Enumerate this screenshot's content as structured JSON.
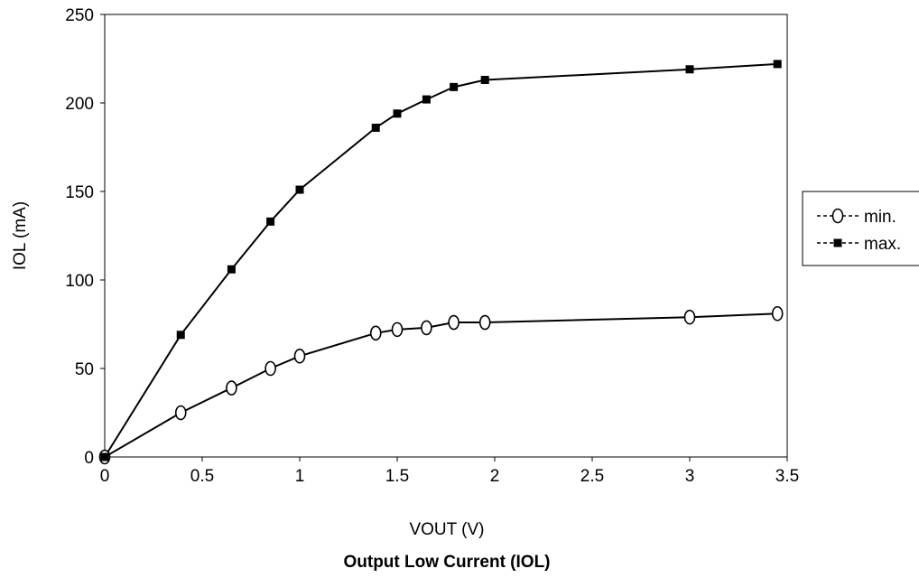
{
  "chart_data": {
    "type": "line",
    "title": "Output Low Current (IOL)",
    "xlabel": "VOUT (V)",
    "ylabel": "IOL (mA)",
    "xlim": [
      0,
      3.5
    ],
    "ylim": [
      0,
      250
    ],
    "x_ticks": [
      "0",
      "0.5",
      "1",
      "1.5",
      "2",
      "2.5",
      "3",
      "3.5"
    ],
    "y_ticks": [
      "0",
      "50",
      "100",
      "150",
      "200",
      "250"
    ],
    "grid": false,
    "legend_position": "right",
    "series": [
      {
        "name": "min.",
        "marker": "open-circle",
        "color": "#000000",
        "points": [
          {
            "x": 0,
            "y": 0
          },
          {
            "x": 0.39,
            "y": 25
          },
          {
            "x": 0.65,
            "y": 39
          },
          {
            "x": 0.85,
            "y": 50
          },
          {
            "x": 1.0,
            "y": 57
          },
          {
            "x": 1.39,
            "y": 70
          },
          {
            "x": 1.5,
            "y": 72
          },
          {
            "x": 1.65,
            "y": 73
          },
          {
            "x": 1.79,
            "y": 76
          },
          {
            "x": 1.95,
            "y": 76
          },
          {
            "x": 3.0,
            "y": 79
          },
          {
            "x": 3.45,
            "y": 81
          }
        ]
      },
      {
        "name": "max.",
        "marker": "filled-square",
        "color": "#000000",
        "points": [
          {
            "x": 0,
            "y": 0
          },
          {
            "x": 0.39,
            "y": 69
          },
          {
            "x": 0.65,
            "y": 106
          },
          {
            "x": 0.85,
            "y": 133
          },
          {
            "x": 1.0,
            "y": 151
          },
          {
            "x": 1.39,
            "y": 186
          },
          {
            "x": 1.5,
            "y": 194
          },
          {
            "x": 1.65,
            "y": 202
          },
          {
            "x": 1.79,
            "y": 209
          },
          {
            "x": 1.95,
            "y": 213
          },
          {
            "x": 3.0,
            "y": 219
          },
          {
            "x": 3.45,
            "y": 222
          }
        ]
      }
    ]
  }
}
